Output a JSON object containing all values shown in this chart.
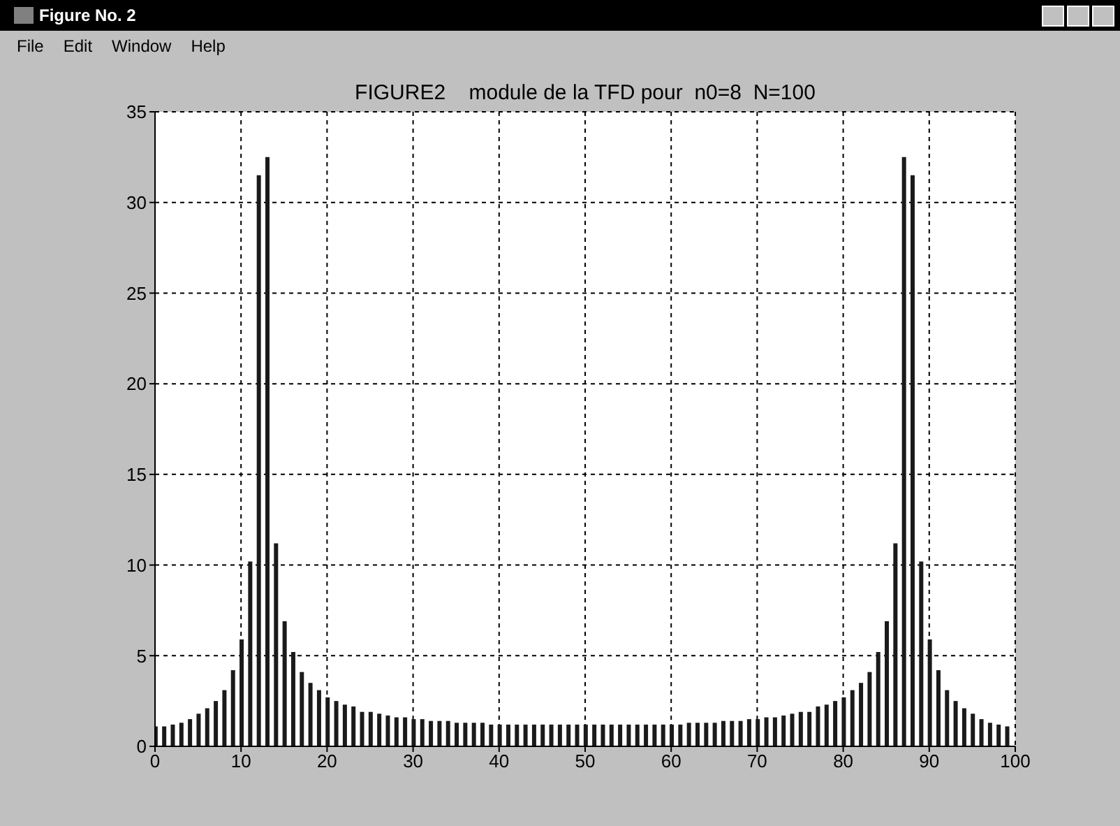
{
  "chart_data": {
    "type": "bar",
    "title": "FIGURE2    module de la TFD pour  n0=8  N=100",
    "annotations": [
      "Figure No. 2",
      "File",
      "Edit",
      "Window",
      "Help"
    ],
    "x": [
      0,
      1,
      2,
      3,
      4,
      5,
      6,
      7,
      8,
      9,
      10,
      11,
      12,
      13,
      14,
      15,
      16,
      17,
      18,
      19,
      20,
      21,
      22,
      23,
      24,
      25,
      26,
      27,
      28,
      29,
      30,
      31,
      32,
      33,
      34,
      35,
      36,
      37,
      38,
      39,
      40,
      41,
      42,
      43,
      44,
      45,
      46,
      47,
      48,
      49,
      50,
      51,
      52,
      53,
      54,
      55,
      56,
      57,
      58,
      59,
      60,
      61,
      62,
      63,
      64,
      65,
      66,
      67,
      68,
      69,
      70,
      71,
      72,
      73,
      74,
      75,
      76,
      77,
      78,
      79,
      80,
      81,
      82,
      83,
      84,
      85,
      86,
      87,
      88,
      89,
      90,
      91,
      92,
      93,
      94,
      95,
      96,
      97,
      98,
      99
    ],
    "values": [
      1.1,
      1.1,
      1.2,
      1.3,
      1.5,
      1.8,
      2.1,
      2.5,
      3.1,
      4.2,
      5.9,
      10.2,
      31.5,
      32.5,
      11.2,
      6.9,
      5.2,
      4.1,
      3.5,
      3.1,
      2.7,
      2.5,
      2.3,
      2.2,
      1.9,
      1.9,
      1.8,
      1.7,
      1.6,
      1.6,
      1.5,
      1.5,
      1.4,
      1.4,
      1.4,
      1.3,
      1.3,
      1.3,
      1.3,
      1.2,
      1.2,
      1.2,
      1.2,
      1.2,
      1.2,
      1.2,
      1.2,
      1.2,
      1.2,
      1.2,
      1.2,
      1.2,
      1.2,
      1.2,
      1.2,
      1.2,
      1.2,
      1.2,
      1.2,
      1.2,
      1.2,
      1.2,
      1.3,
      1.3,
      1.3,
      1.3,
      1.4,
      1.4,
      1.4,
      1.5,
      1.5,
      1.6,
      1.6,
      1.7,
      1.8,
      1.9,
      1.9,
      2.2,
      2.3,
      2.5,
      2.7,
      3.1,
      3.5,
      4.1,
      5.2,
      6.9,
      11.2,
      32.5,
      31.5,
      10.2,
      5.9,
      4.2,
      3.1,
      2.5,
      2.1,
      1.8,
      1.5,
      1.3,
      1.2,
      1.1
    ],
    "color": "#1a1a1a",
    "xlim": [
      0,
      100
    ],
    "xticks": [
      0,
      10,
      20,
      30,
      40,
      50,
      60,
      70,
      80,
      90,
      100
    ],
    "ylim": [
      0,
      35
    ],
    "yticks": [
      0,
      5,
      10,
      15,
      20,
      25,
      30,
      35
    ],
    "grid": true
  }
}
